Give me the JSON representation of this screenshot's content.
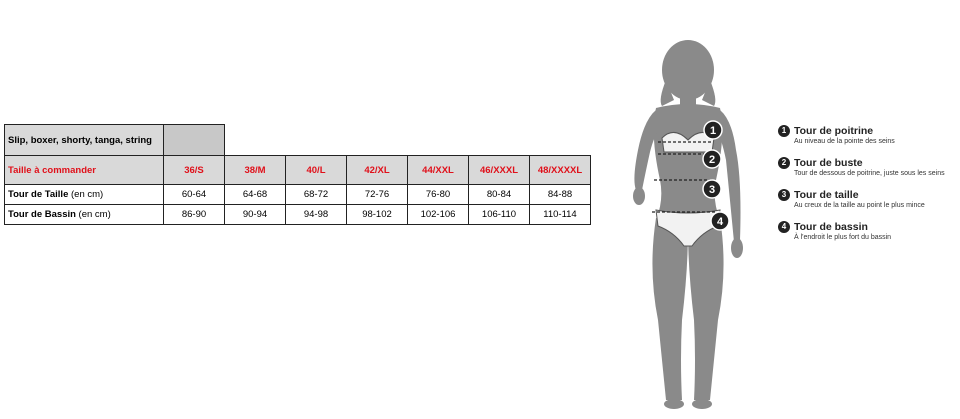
{
  "table": {
    "category_label": "Slip, boxer, shorty, tanga, string",
    "header_label": "Taille à commander",
    "sizes": [
      "36/S",
      "38/M",
      "40/L",
      "42/XL",
      "44/XXL",
      "46/XXXL",
      "48/XXXXL"
    ],
    "rows": [
      {
        "label_bold": "Tour de Taille",
        "label_unit": " (en cm)",
        "values": [
          "60-64",
          "64-68",
          "68-72",
          "72-76",
          "76-80",
          "80-84",
          "84-88"
        ]
      },
      {
        "label_bold": "Tour de Bassin",
        "label_unit": " (en cm)",
        "values": [
          "86-90",
          "90-94",
          "94-98",
          "98-102",
          "102-106",
          "106-110",
          "110-114"
        ]
      }
    ]
  },
  "figure": {
    "markers": [
      "1",
      "2",
      "3",
      "4"
    ]
  },
  "legend": [
    {
      "num": "1",
      "title": "Tour de poitrine",
      "desc": "Au niveau de la pointe des seins"
    },
    {
      "num": "2",
      "title": "Tour de buste",
      "desc": "Tour de dessous de poitrine, juste sous les seins"
    },
    {
      "num": "3",
      "title": "Tour de taille",
      "desc": "Au creux de la taille au point le plus mince"
    },
    {
      "num": "4",
      "title": "Tour de bassin",
      "desc": "À l'endroit le plus fort du bassin"
    }
  ],
  "colors": {
    "header_text": "#e0101a",
    "header_bg": "#d9d9d9",
    "silhouette": "#8a8a8a"
  }
}
